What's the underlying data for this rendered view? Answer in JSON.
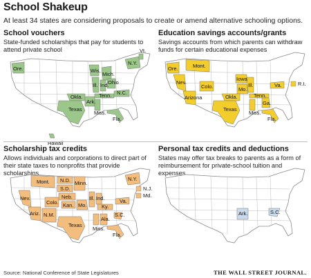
{
  "header": {
    "title": "School Shakeup",
    "subtitle": "At least 34 states are considering proposals to create or amend alternative schooling options."
  },
  "colors": {
    "vouchers": "#9bc88a",
    "esa": "#f2cd2c",
    "scholarship_tax": "#f3bd7e",
    "tax_credit": "#c9dbea",
    "base_state": "#ffffff",
    "outline": "#888888"
  },
  "panels": [
    {
      "id": "vouchers",
      "title": "School vouchers",
      "description": "State-funded scholarships that pay for students to attend private school",
      "states": [
        "Ore.",
        "Wis.",
        "Mich.",
        "Vt.",
        "N.Y.",
        "Ill.",
        "Ind.",
        "Ohio",
        "Okla.",
        "Ark.",
        "Tenn.",
        "N.C.",
        "Texas",
        "Miss.",
        "Fla.",
        "Hawaii"
      ],
      "legend": []
    },
    {
      "id": "esa",
      "title": "Education savings accounts/grants",
      "description": "Savings accounts from which parents can withdraw funds for certain educational expenses",
      "states": [
        "Mont.",
        "Ore.",
        "Nev.",
        "Colo.",
        "Iowa",
        "Ill.",
        "Mo.",
        "Va.",
        "Arizona",
        "Okla.",
        "Tenn.",
        "Texas",
        "Miss.",
        "Ga.",
        "Fla."
      ],
      "legend": [
        "R.I."
      ]
    },
    {
      "id": "scholarship_tax",
      "title": "Scholarship tax credits",
      "description": "Allows individuals and corporations to direct part of their state taxes to nonprofits that provide scholarships",
      "states": [
        "Mont.",
        "N.D.",
        "S.D.",
        "Minn.",
        "Neb.",
        "Nev.",
        "Colo.",
        "Kan.",
        "Mo.",
        "Ill.",
        "Ind.",
        "Ky.",
        "Va.",
        "N.Y.",
        "Ariz.",
        "N.M.",
        "Texas",
        "Ala.",
        "Miss.",
        "S.C.",
        "Fla."
      ],
      "legend": [
        "N.J.",
        "Md."
      ]
    },
    {
      "id": "tax_credit",
      "title": "Personal tax credits and deductions",
      "description": "States may offer tax breaks to parents as a form of reimbursement for private-school tuition and expenses",
      "states": [
        "Ark.",
        "S.C."
      ],
      "legend": []
    }
  ],
  "footer": {
    "source": "Source: National Conference of State Legislatures",
    "credit": "THE WALL STREET JOURNAL."
  }
}
